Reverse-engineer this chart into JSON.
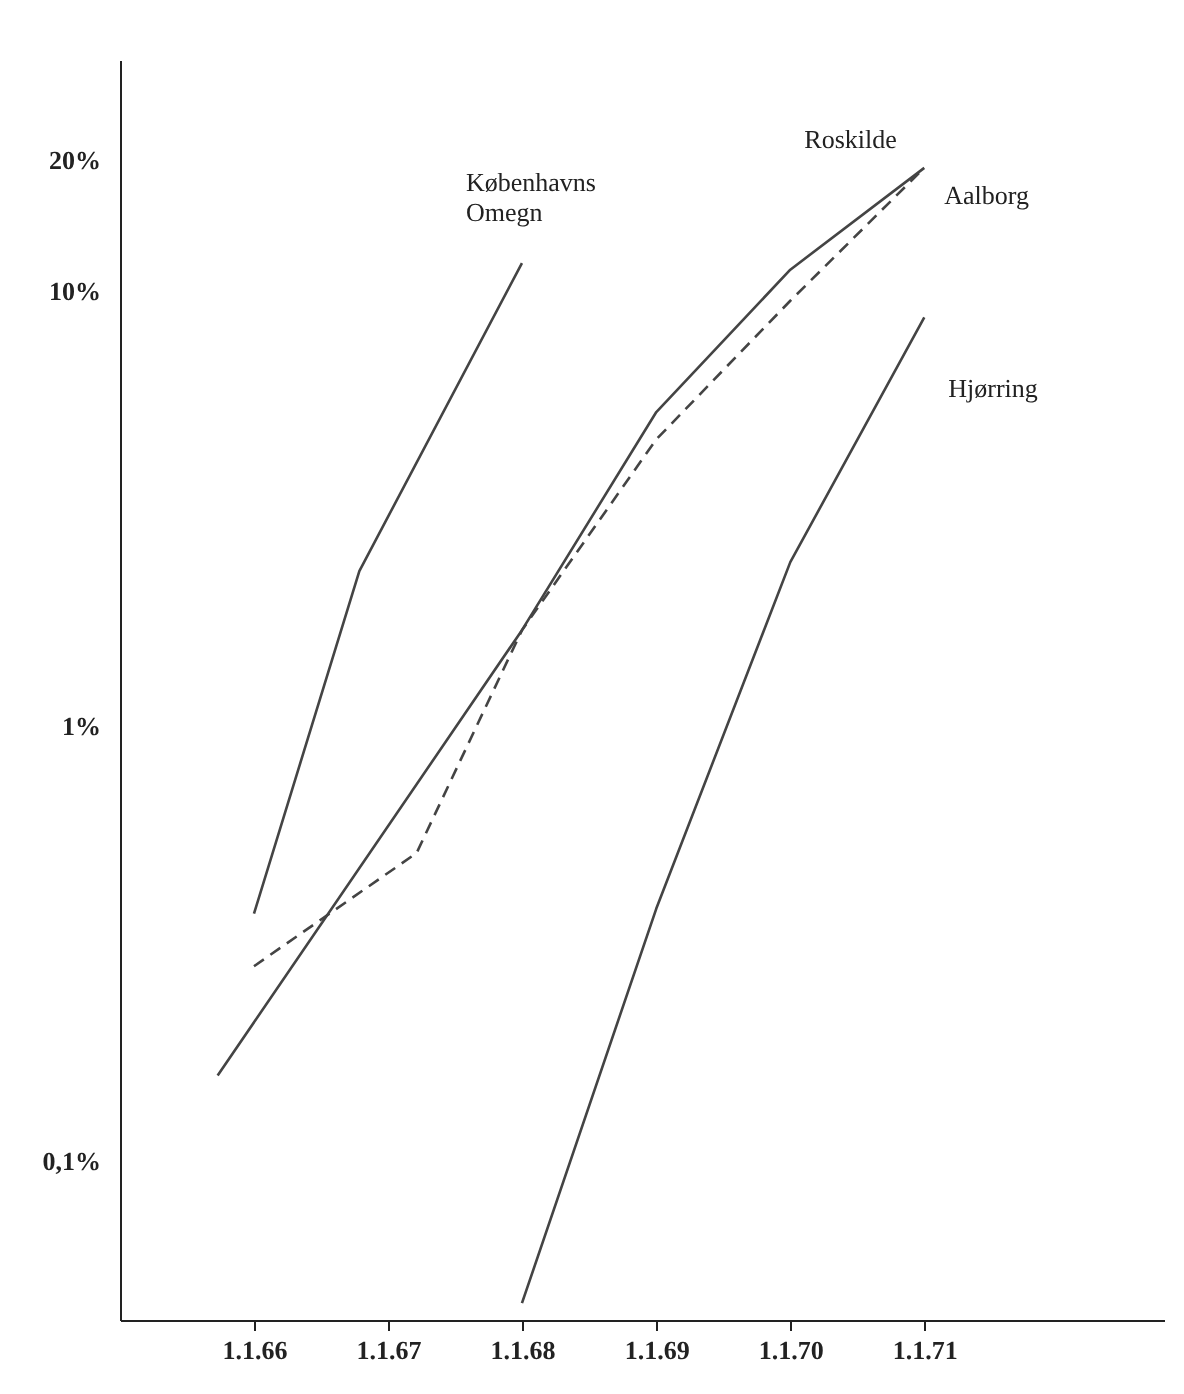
{
  "chart_data": {
    "type": "line",
    "log": "y",
    "xlim": [
      "1965-01-01",
      "1972-10-15"
    ],
    "ylim": [
      0.043,
      34
    ],
    "xticks": [
      {
        "value": "1966-01-01",
        "label": "1.1.66"
      },
      {
        "value": "1967-01-01",
        "label": "1.1.67"
      },
      {
        "value": "1968-01-01",
        "label": "1.1.68"
      },
      {
        "value": "1969-01-01",
        "label": "1.1.69"
      },
      {
        "value": "1970-01-01",
        "label": "1.1.70"
      },
      {
        "value": "1971-01-01",
        "label": "1.1.71"
      }
    ],
    "yticks": [
      {
        "value": 0.1,
        "label": "0,1%"
      },
      {
        "value": 1,
        "label": "1%"
      },
      {
        "value": 10,
        "label": "10%"
      },
      {
        "value": 20,
        "label": "20%"
      }
    ],
    "grid": false,
    "legend": false,
    "marker": "none",
    "series": [
      {
        "name": "Københavns Omegn",
        "color": "#444444",
        "line_style": "solid",
        "x": [
          "1966-01-01",
          "1966-10-15",
          "1968-01-01"
        ],
        "values": [
          0.37,
          2.27,
          11.6
        ]
      },
      {
        "name": "Roskilde",
        "color": "#444444",
        "line_style": "solid",
        "x": [
          "1965-09-24",
          "1968-01-01",
          "1969-01-01",
          "1970-01-01",
          "1971-01-01"
        ],
        "values": [
          0.157,
          1.66,
          5.27,
          11.2,
          19.2
        ]
      },
      {
        "name": "Aalborg",
        "color": "#444444",
        "line_style": "dashed",
        "x": [
          "1966-01-01",
          "1967-03-20",
          "1968-01-01",
          "1969-01-01",
          "1970-01-01",
          "1971-01-01"
        ],
        "values": [
          0.28,
          0.51,
          1.66,
          4.56,
          9.5,
          19.2
        ]
      },
      {
        "name": "Hjørring",
        "color": "#444444",
        "line_style": "solid",
        "x": [
          "1968-01-01",
          "1969-01-01",
          "1970-01-01",
          "1971-01-01"
        ],
        "values": [
          0.047,
          0.38,
          2.38,
          8.7
        ]
      }
    ]
  }
}
